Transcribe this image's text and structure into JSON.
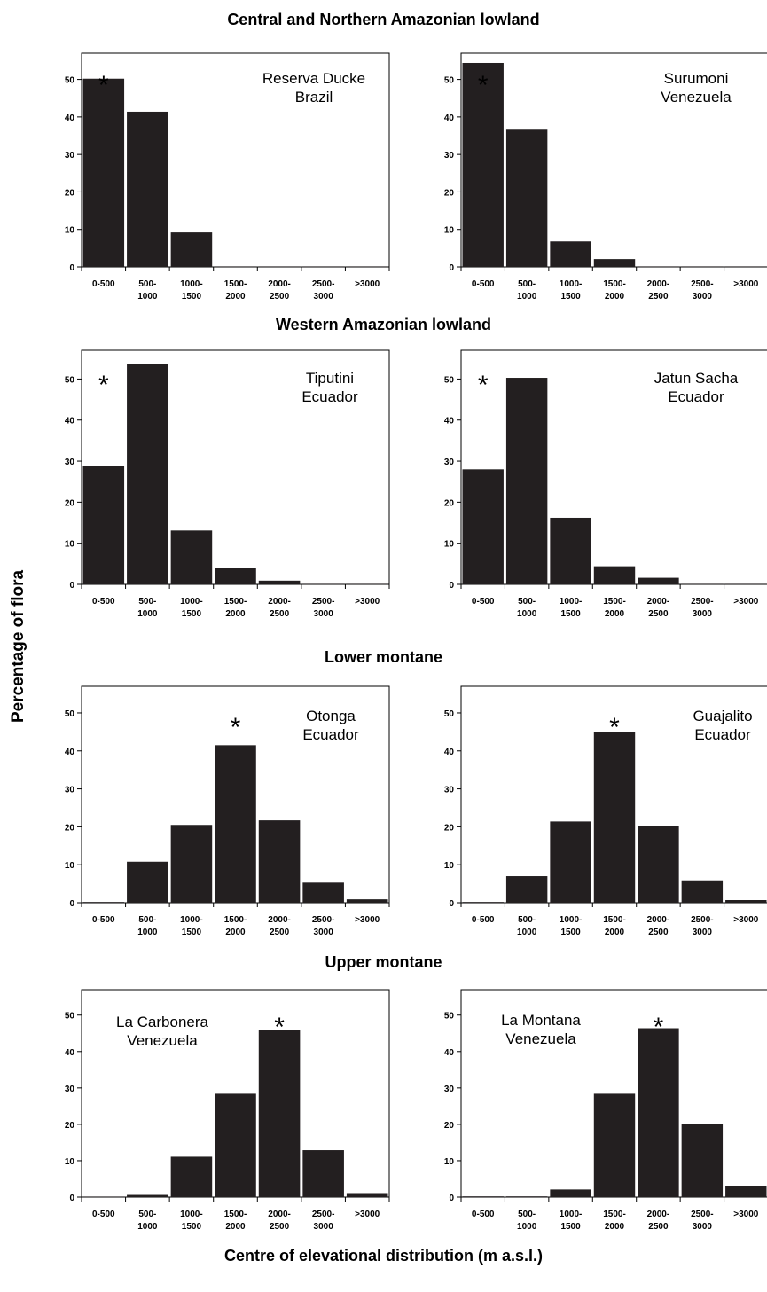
{
  "y_axis_label": "Percentage of flora",
  "x_axis_label": "Centre of elevational distribution (m a.s.l.)",
  "groups": [
    "Central and Northern Amazonian lowland",
    "Western Amazonian lowland",
    "Lower montane",
    "Upper montane"
  ],
  "chart_data": [
    {
      "type": "bar",
      "group": "Central and Northern Amazonian lowland",
      "site": [
        "Reserva Ducke",
        "Brazil"
      ],
      "categories": [
        "0-500",
        "500-1000",
        "1000-1500",
        "1500-2000",
        "2000-2500",
        "2500-3000",
        ">3000"
      ],
      "category_lines": [
        [
          "0-500"
        ],
        [
          "500-",
          "1000"
        ],
        [
          "1000-",
          "1500"
        ],
        [
          "1500-",
          "2000"
        ],
        [
          "2000-",
          "2500"
        ],
        [
          "2500-",
          "3000"
        ],
        [
          ">3000"
        ]
      ],
      "values": [
        50.2,
        41.4,
        9.2,
        0,
        0,
        0,
        0
      ],
      "yticks": [
        "0",
        "10",
        "20",
        "30",
        "40",
        "50"
      ],
      "ylim": [
        0,
        57
      ],
      "star_index": 0,
      "star": "*",
      "grid": false
    },
    {
      "type": "bar",
      "group": "Central and Northern Amazonian lowland",
      "site": [
        "Surumoni",
        "Venezuela"
      ],
      "categories": [
        "0-500",
        "500-1000",
        "1000-1500",
        "1500-2000",
        "2000-2500",
        "2500-3000",
        ">3000"
      ],
      "category_lines": [
        [
          "0-500"
        ],
        [
          "500-",
          "1000"
        ],
        [
          "1000-",
          "1500"
        ],
        [
          "1500-",
          "2000"
        ],
        [
          "2000-",
          "2500"
        ],
        [
          "2500-",
          "3000"
        ],
        [
          ">3000"
        ]
      ],
      "values": [
        54.4,
        36.6,
        6.8,
        2.1,
        0,
        0,
        0
      ],
      "yticks": [
        "0",
        "10",
        "20",
        "30",
        "40",
        "50"
      ],
      "ylim": [
        0,
        57
      ],
      "star_index": 0,
      "star": "*",
      "grid": false
    },
    {
      "type": "bar",
      "group": "Western Amazonian lowland",
      "site": [
        "Tiputini",
        "Ecuador"
      ],
      "categories": [
        "0-500",
        "500-1000",
        "1000-1500",
        "1500-2000",
        "2000-2500",
        "2500-3000",
        ">3000"
      ],
      "category_lines": [
        [
          "0-500"
        ],
        [
          "500-",
          "1000"
        ],
        [
          "1000-",
          "1500"
        ],
        [
          "1500-",
          "2000"
        ],
        [
          "2000-",
          "2500"
        ],
        [
          "2500-",
          "3000"
        ],
        [
          ">3000"
        ]
      ],
      "values": [
        28.8,
        53.6,
        13.1,
        4.1,
        0.9,
        0.1,
        0
      ],
      "yticks": [
        "0",
        "10",
        "20",
        "30",
        "40",
        "50"
      ],
      "ylim": [
        0,
        57
      ],
      "star_index": 0,
      "star": "*",
      "grid": false
    },
    {
      "type": "bar",
      "group": "Western Amazonian lowland",
      "site": [
        "Jatun Sacha",
        "Ecuador"
      ],
      "categories": [
        "0-500",
        "500-1000",
        "1000-1500",
        "1500-2000",
        "2000-2500",
        "2500-3000",
        ">3000"
      ],
      "category_lines": [
        [
          "0-500"
        ],
        [
          "500-",
          "1000"
        ],
        [
          "1000-",
          "1500"
        ],
        [
          "1500-",
          "2000"
        ],
        [
          "2000-",
          "2500"
        ],
        [
          "2500-",
          "3000"
        ],
        [
          ">3000"
        ]
      ],
      "values": [
        28.0,
        50.3,
        16.2,
        4.4,
        1.6,
        0.1,
        0
      ],
      "yticks": [
        "0",
        "10",
        "20",
        "30",
        "40",
        "50"
      ],
      "ylim": [
        0,
        57
      ],
      "star_index": 0,
      "star": "*",
      "grid": false
    },
    {
      "type": "bar",
      "group": "Lower montane",
      "site": [
        "Otonga",
        "Ecuador"
      ],
      "categories": [
        "0-500",
        "500-1000",
        "1000-1500",
        "1500-2000",
        "2000-2500",
        "2500-3000",
        ">3000"
      ],
      "category_lines": [
        [
          "0-500"
        ],
        [
          "500-",
          "1000"
        ],
        [
          "1000-",
          "1500"
        ],
        [
          "1500-",
          "2000"
        ],
        [
          "2000-",
          "2500"
        ],
        [
          "2500-",
          "3000"
        ],
        [
          ">3000"
        ]
      ],
      "values": [
        0.2,
        10.8,
        20.5,
        41.5,
        21.7,
        5.3,
        0.9
      ],
      "yticks": [
        "0",
        "10",
        "20",
        "30",
        "40",
        "50"
      ],
      "ylim": [
        0,
        57
      ],
      "star_index": 3,
      "star": "*",
      "grid": false
    },
    {
      "type": "bar",
      "group": "Lower montane",
      "site": [
        "Guajalito",
        "Ecuador"
      ],
      "categories": [
        "0-500",
        "500-1000",
        "1000-1500",
        "1500-2000",
        "2000-2500",
        "2500-3000",
        ">3000"
      ],
      "category_lines": [
        [
          "0-500"
        ],
        [
          "500-",
          "1000"
        ],
        [
          "1000-",
          "1500"
        ],
        [
          "1500-",
          "2000"
        ],
        [
          "2000-",
          "2500"
        ],
        [
          "2500-",
          "3000"
        ],
        [
          ">3000"
        ]
      ],
      "values": [
        0.2,
        7.0,
        21.4,
        45.0,
        20.2,
        5.9,
        0.7
      ],
      "yticks": [
        "0",
        "10",
        "20",
        "30",
        "40",
        "50"
      ],
      "ylim": [
        0,
        57
      ],
      "star_index": 3,
      "star": "*",
      "grid": false
    },
    {
      "type": "bar",
      "group": "Upper montane",
      "site": [
        "La Carbonera",
        "Venezuela"
      ],
      "categories": [
        "0-500",
        "500-1000",
        "1000-1500",
        "1500-2000",
        "2000-2500",
        "2500-3000",
        ">3000"
      ],
      "category_lines": [
        [
          "0-500"
        ],
        [
          "500-",
          "1000"
        ],
        [
          "1000-",
          "1500"
        ],
        [
          "1500-",
          "2000"
        ],
        [
          "2000-",
          "2500"
        ],
        [
          "2500-",
          "3000"
        ],
        [
          ">3000"
        ]
      ],
      "values": [
        0,
        0.6,
        11.1,
        28.4,
        45.8,
        12.9,
        1.1
      ],
      "yticks": [
        "0",
        "10",
        "20",
        "30",
        "40",
        "50"
      ],
      "ylim": [
        0,
        57
      ],
      "star_index": 4,
      "star": "*",
      "grid": false
    },
    {
      "type": "bar",
      "group": "Upper montane",
      "site": [
        "La Montana",
        "Venezuela"
      ],
      "categories": [
        "0-500",
        "500-1000",
        "1000-1500",
        "1500-2000",
        "2000-2500",
        "2500-3000",
        ">3000"
      ],
      "category_lines": [
        [
          "0-500"
        ],
        [
          "500-",
          "1000"
        ],
        [
          "1000-",
          "1500"
        ],
        [
          "1500-",
          "2000"
        ],
        [
          "2000-",
          "2500"
        ],
        [
          "2500-",
          "3000"
        ],
        [
          ">3000"
        ]
      ],
      "values": [
        0.2,
        0.2,
        2.1,
        28.4,
        46.4,
        20.0,
        3.0
      ],
      "yticks": [
        "0",
        "10",
        "20",
        "30",
        "40",
        "50"
      ],
      "ylim": [
        0,
        57
      ],
      "star_index": 4,
      "star": "*",
      "grid": false
    }
  ]
}
